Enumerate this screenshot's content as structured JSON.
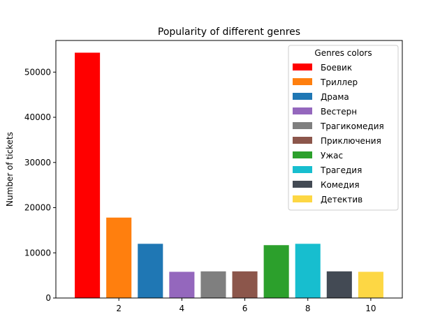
{
  "chart_data": {
    "type": "bar",
    "title": "Popularity of different genres",
    "xlabel": "",
    "ylabel": "Number of tickets",
    "xlim": [
      0,
      11
    ],
    "ylim": [
      0,
      57000
    ],
    "x_ticks": [
      2,
      4,
      6,
      8,
      10
    ],
    "y_ticks": [
      0,
      10000,
      20000,
      30000,
      40000,
      50000
    ],
    "grid": false,
    "legend": {
      "title": "Genres colors",
      "placement": "upper right"
    },
    "bars": [
      {
        "x": 1,
        "value": 54300,
        "label": "Боевик",
        "color": "#ff0000"
      },
      {
        "x": 2,
        "value": 17800,
        "label": "Триллер",
        "color": "#ff7f0e"
      },
      {
        "x": 3,
        "value": 12000,
        "label": "Драма",
        "color": "#1f77b4"
      },
      {
        "x": 4,
        "value": 5800,
        "label": "Вестерн",
        "color": "#9467bd"
      },
      {
        "x": 5,
        "value": 5900,
        "label": "Трагикомедия",
        "color": "#7f7f7f"
      },
      {
        "x": 6,
        "value": 5900,
        "label": "Приключения",
        "color": "#8c564b"
      },
      {
        "x": 7,
        "value": 11700,
        "label": "Ужас",
        "color": "#2ca02c"
      },
      {
        "x": 8,
        "value": 12000,
        "label": "Трагедия",
        "color": "#17becf"
      },
      {
        "x": 9,
        "value": 5900,
        "label": "Комедия",
        "color": "#434a54"
      },
      {
        "x": 10,
        "value": 5800,
        "label": "Детектив",
        "color": "#fdd744"
      }
    ]
  }
}
